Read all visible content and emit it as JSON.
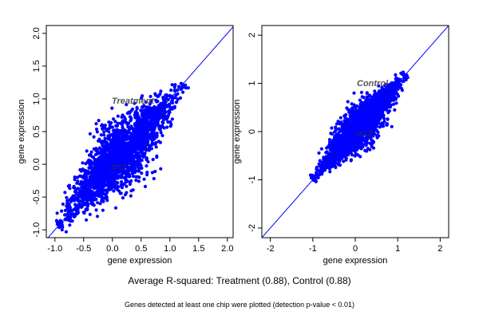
{
  "chart_data": [
    {
      "type": "scatter",
      "annotation": "Treatment",
      "inner_label": "n=2",
      "xlabel": "gene expression",
      "ylabel": "gene expression",
      "xlim": [
        -1.15,
        2.1
      ],
      "ylim": [
        -1.12,
        2.12
      ],
      "xticks": [
        -1.0,
        -0.5,
        0.0,
        0.5,
        1.0,
        1.5,
        2.0
      ],
      "xtick_labels": [
        "-1.0",
        "-0.5",
        "0.0",
        "0.5",
        "1.0",
        "1.5",
        "2.0"
      ],
      "yticks": [
        -1.0,
        -0.5,
        0.0,
        0.5,
        1.0,
        1.5,
        2.0
      ],
      "ytick_labels": [
        "-1.0",
        "-0.5",
        "0.0",
        "0.5",
        "1.0",
        "1.5",
        "2.0"
      ],
      "reference_line": {
        "slope": 1,
        "intercept": 0
      },
      "cloud": {
        "min": -0.95,
        "max": 1.25,
        "spread": 0.16
      },
      "grid": false,
      "point_color": "#0000ff",
      "line_color": "#0000ff"
    },
    {
      "type": "scatter",
      "annotation": "Control",
      "inner_label": "n=2",
      "xlabel": "gene expression",
      "ylabel": "gene expression",
      "xlim": [
        -2.2,
        2.2
      ],
      "ylim": [
        -2.2,
        2.2
      ],
      "xticks": [
        -2,
        -1,
        0,
        1,
        2
      ],
      "xtick_labels": [
        "-2",
        "-1",
        "0",
        "1",
        "2"
      ],
      "yticks": [
        -2,
        -1,
        0,
        1,
        2
      ],
      "ytick_labels": [
        "-2",
        "-1",
        "0",
        "1",
        "2"
      ],
      "reference_line": {
        "slope": 1,
        "intercept": 0
      },
      "cloud": {
        "min": -1.0,
        "max": 1.2,
        "spread": 0.14
      },
      "grid": false,
      "point_color": "#0000ff",
      "line_color": "#0000ff"
    }
  ],
  "caption": "Average R-squared: Treatment (0.88), Control (0.88)",
  "footnote": "Genes detected at least one chip were plotted (detection p-value < 0.01)"
}
